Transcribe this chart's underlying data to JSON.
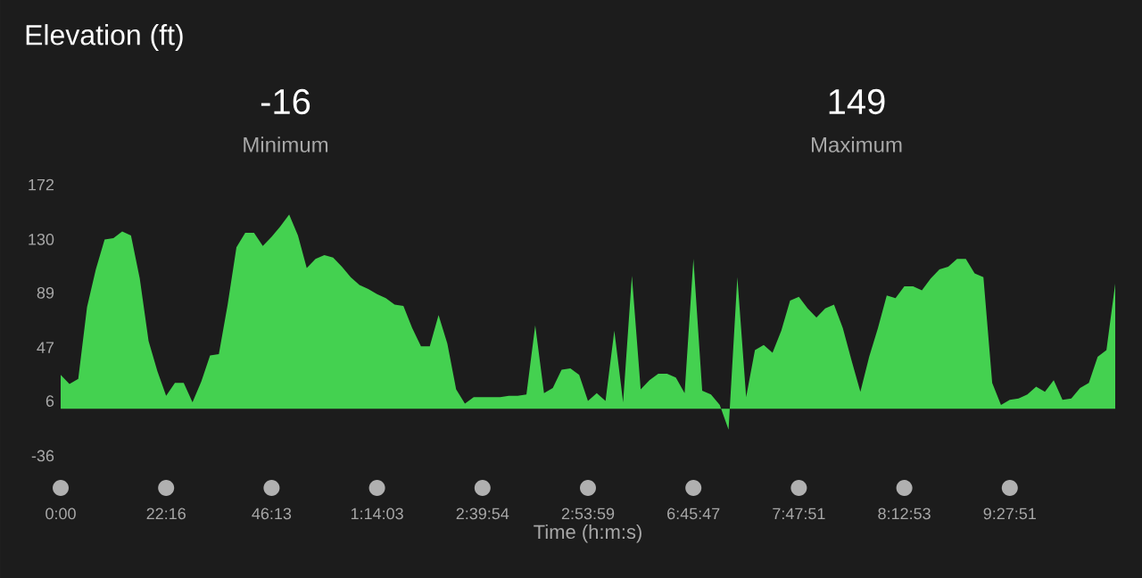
{
  "chart_data": {
    "type": "area",
    "title": "Elevation (ft)",
    "xlabel": "Time (h:m:s)",
    "annotations": [
      "-16",
      "Minimum",
      "149",
      "Maximum"
    ],
    "color": "#44d150",
    "categories": [
      "0:00",
      null,
      null,
      null,
      null,
      null,
      null,
      null,
      null,
      null,
      null,
      null,
      "22:16",
      null,
      null,
      null,
      null,
      null,
      null,
      null,
      null,
      null,
      null,
      null,
      "46:13",
      null,
      null,
      null,
      null,
      null,
      null,
      null,
      null,
      null,
      null,
      null,
      "1:14:03",
      null,
      null,
      null,
      null,
      null,
      null,
      null,
      null,
      null,
      null,
      null,
      "2:39:54",
      null,
      null,
      null,
      null,
      null,
      null,
      null,
      null,
      null,
      null,
      null,
      "2:53:59",
      null,
      null,
      null,
      null,
      null,
      null,
      null,
      null,
      null,
      null,
      null,
      "6:45:47",
      null,
      null,
      null,
      null,
      null,
      null,
      null,
      null,
      null,
      null,
      null,
      "7:47:51",
      null,
      null,
      null,
      null,
      null,
      null,
      null,
      null,
      null,
      null,
      null,
      "8:12:53",
      null,
      null,
      null,
      null,
      null,
      null,
      null,
      null,
      null,
      null,
      null,
      "9:27:51",
      null,
      null,
      null,
      null,
      null,
      null,
      null,
      null,
      null,
      null,
      null,
      null
    ],
    "values": [
      26,
      19,
      23,
      78,
      107,
      130,
      131,
      136,
      133,
      100,
      52,
      29,
      10,
      20,
      20,
      5,
      21,
      41,
      42,
      80,
      124,
      135,
      135,
      125,
      132,
      140,
      149,
      133,
      108,
      115,
      118,
      116,
      109,
      101,
      95,
      92,
      88,
      85,
      80,
      79,
      62,
      48,
      48,
      72,
      50,
      15,
      4,
      9,
      9,
      9,
      9,
      10,
      10,
      11,
      64,
      12,
      16,
      30,
      31,
      26,
      6,
      12,
      6,
      60,
      5,
      102,
      15,
      22,
      27,
      27,
      24,
      12,
      115,
      14,
      11,
      3,
      -16,
      101,
      9,
      45,
      49,
      43,
      60,
      83,
      86,
      77,
      70,
      77,
      80,
      62,
      37,
      13,
      40,
      62,
      87,
      85,
      94,
      94,
      91,
      100,
      107,
      109,
      115,
      115,
      104,
      101,
      20,
      3,
      7,
      8,
      11,
      17,
      13,
      22,
      7,
      8,
      16,
      20,
      40,
      45,
      96
    ],
    "ylim": [
      -36,
      172
    ],
    "yticks": [
      -36,
      6,
      47,
      89,
      130,
      172
    ]
  }
}
